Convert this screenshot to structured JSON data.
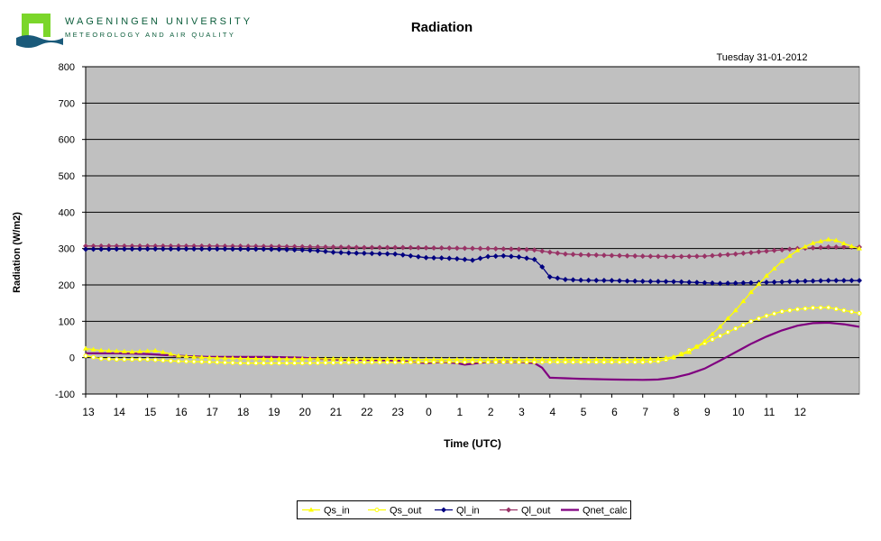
{
  "header": {
    "university": "WAGENINGEN UNIVERSITY",
    "department": "METEOROLOGY AND AIR QUALITY"
  },
  "chart_data": {
    "type": "line",
    "title": "Radiation",
    "subtitle": "Tuesday 31-01-2012",
    "xlabel": "Time (UTC)",
    "ylabel": "Radiation (W/m2)",
    "ylim": [
      -100,
      800
    ],
    "yticks": [
      -100,
      0,
      100,
      200,
      300,
      400,
      500,
      600,
      700,
      800
    ],
    "x_ticks": [
      "13",
      "14",
      "15",
      "16",
      "17",
      "18",
      "19",
      "20",
      "21",
      "22",
      "23",
      "0",
      "1",
      "2",
      "3",
      "4",
      "5",
      "6",
      "7",
      "8",
      "9",
      "10",
      "11",
      "12"
    ],
    "grid": true,
    "plot_background": "#c0c0c0",
    "legend_position": "bottom",
    "series": [
      {
        "name": "Qs_in",
        "color": "#ffff00",
        "marker": "triangle",
        "points": [
          [
            0,
            25
          ],
          [
            0.5,
            20
          ],
          [
            1,
            18
          ],
          [
            1.5,
            16
          ],
          [
            2,
            18
          ],
          [
            2.2,
            20
          ],
          [
            2.5,
            15
          ],
          [
            3,
            5
          ],
          [
            3.5,
            2
          ],
          [
            4,
            0
          ],
          [
            5,
            -2
          ],
          [
            6,
            -3
          ],
          [
            7,
            -3
          ],
          [
            8,
            -3
          ],
          [
            9,
            -4
          ],
          [
            10,
            -4
          ],
          [
            11,
            -5
          ],
          [
            12,
            -5
          ],
          [
            13,
            -5
          ],
          [
            14,
            -5
          ],
          [
            15,
            -5
          ],
          [
            16,
            -5
          ],
          [
            17,
            -5
          ],
          [
            18,
            -5
          ],
          [
            18.5,
            -3
          ],
          [
            19,
            2
          ],
          [
            19.5,
            15
          ],
          [
            20,
            45
          ],
          [
            20.5,
            85
          ],
          [
            21,
            130
          ],
          [
            21.5,
            180
          ],
          [
            22,
            225
          ],
          [
            22.5,
            265
          ],
          [
            23,
            295
          ],
          [
            23.5,
            315
          ],
          [
            24,
            325
          ],
          [
            24.3,
            322
          ],
          [
            24.6,
            310
          ],
          [
            25,
            300
          ]
        ]
      },
      {
        "name": "Qs_out",
        "color": "#ffff00",
        "marker": "circle",
        "points": [
          [
            0,
            5
          ],
          [
            0.5,
            -3
          ],
          [
            1,
            -5
          ],
          [
            2,
            -5
          ],
          [
            3,
            -10
          ],
          [
            4,
            -12
          ],
          [
            5,
            -15
          ],
          [
            6,
            -15
          ],
          [
            7,
            -15
          ],
          [
            8,
            -14
          ],
          [
            9,
            -13
          ],
          [
            10,
            -13
          ],
          [
            11,
            -12
          ],
          [
            12,
            -12
          ],
          [
            13,
            -12
          ],
          [
            14,
            -12
          ],
          [
            15,
            -12
          ],
          [
            16,
            -12
          ],
          [
            17,
            -12
          ],
          [
            18,
            -12
          ],
          [
            18.5,
            -10
          ],
          [
            19,
            0
          ],
          [
            19.5,
            20
          ],
          [
            20,
            40
          ],
          [
            20.5,
            60
          ],
          [
            21,
            80
          ],
          [
            21.5,
            100
          ],
          [
            22,
            115
          ],
          [
            22.5,
            127
          ],
          [
            23,
            133
          ],
          [
            23.5,
            137
          ],
          [
            24,
            138
          ],
          [
            24.5,
            130
          ],
          [
            25,
            122
          ]
        ]
      },
      {
        "name": "Ql_in",
        "color": "#000080",
        "marker": "diamond",
        "points": [
          [
            0,
            298
          ],
          [
            2,
            299
          ],
          [
            4,
            299
          ],
          [
            6,
            298
          ],
          [
            7,
            296
          ],
          [
            7.5,
            294
          ],
          [
            8,
            290
          ],
          [
            8.5,
            288
          ],
          [
            9,
            287
          ],
          [
            10,
            285
          ],
          [
            10.5,
            280
          ],
          [
            11,
            275
          ],
          [
            11.5,
            274
          ],
          [
            12,
            272
          ],
          [
            12.5,
            268
          ],
          [
            13,
            278
          ],
          [
            13.5,
            280
          ],
          [
            14,
            277
          ],
          [
            14.5,
            270
          ],
          [
            14.7,
            255
          ],
          [
            15,
            222
          ],
          [
            15.5,
            215
          ],
          [
            16,
            213
          ],
          [
            17,
            212
          ],
          [
            18,
            210
          ],
          [
            19,
            209
          ],
          [
            20,
            206
          ],
          [
            20.5,
            204
          ],
          [
            21,
            205
          ],
          [
            22,
            207
          ],
          [
            23,
            210
          ],
          [
            24,
            212
          ],
          [
            25,
            212
          ]
        ]
      },
      {
        "name": "Ql_out",
        "color": "#993366",
        "marker": "diamond",
        "points": [
          [
            0,
            307
          ],
          [
            2,
            307
          ],
          [
            4,
            307
          ],
          [
            6,
            306
          ],
          [
            7,
            305
          ],
          [
            8,
            304
          ],
          [
            9,
            303
          ],
          [
            10,
            303
          ],
          [
            11,
            302
          ],
          [
            12,
            301
          ],
          [
            13,
            300
          ],
          [
            14,
            298
          ],
          [
            14.5,
            296
          ],
          [
            15,
            290
          ],
          [
            15.5,
            285
          ],
          [
            16,
            283
          ],
          [
            17,
            281
          ],
          [
            18,
            279
          ],
          [
            19,
            278
          ],
          [
            20,
            279
          ],
          [
            20.5,
            282
          ],
          [
            21,
            285
          ],
          [
            22,
            293
          ],
          [
            23,
            300
          ],
          [
            24,
            304
          ],
          [
            25,
            304
          ]
        ]
      },
      {
        "name": "Qnet_calc",
        "color": "#800080",
        "marker": "none",
        "points": [
          [
            0,
            12
          ],
          [
            1,
            12
          ],
          [
            2,
            10
          ],
          [
            3,
            5
          ],
          [
            4,
            2
          ],
          [
            5,
            2
          ],
          [
            6,
            2
          ],
          [
            7,
            0
          ],
          [
            7.5,
            -3
          ],
          [
            8,
            -5
          ],
          [
            9,
            -6
          ],
          [
            10,
            -8
          ],
          [
            11,
            -15
          ],
          [
            11.5,
            -12
          ],
          [
            12,
            -15
          ],
          [
            12.3,
            -20
          ],
          [
            12.6,
            -15
          ],
          [
            13,
            -12
          ],
          [
            14,
            -12
          ],
          [
            14.5,
            -15
          ],
          [
            14.8,
            -30
          ],
          [
            15,
            -55
          ],
          [
            16,
            -58
          ],
          [
            17,
            -60
          ],
          [
            18,
            -61
          ],
          [
            18.5,
            -60
          ],
          [
            19,
            -55
          ],
          [
            19.5,
            -45
          ],
          [
            20,
            -30
          ],
          [
            20.5,
            -8
          ],
          [
            21,
            15
          ],
          [
            21.5,
            38
          ],
          [
            22,
            58
          ],
          [
            22.5,
            75
          ],
          [
            23,
            88
          ],
          [
            23.5,
            95
          ],
          [
            24,
            96
          ],
          [
            24.5,
            92
          ],
          [
            25,
            85
          ]
        ]
      }
    ]
  }
}
